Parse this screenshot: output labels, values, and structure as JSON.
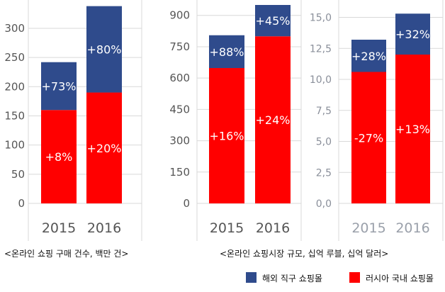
{
  "colors": {
    "overseas": "#2f4b8c",
    "domestic": "#ff0000",
    "grid": "#d9d9d9"
  },
  "chart_data": [
    {
      "type": "bar",
      "stacked": true,
      "categories": [
        "2015",
        "2016"
      ],
      "ylim": [
        0,
        340
      ],
      "yticks": [
        "0",
        "50",
        "100",
        "150",
        "200",
        "250",
        "300"
      ],
      "ytick_values": [
        0,
        50,
        100,
        150,
        200,
        250,
        300
      ],
      "series": [
        {
          "name": "러시아 국내 쇼핑몰",
          "values": [
            160,
            190
          ],
          "labels": [
            "+8%",
            "+20%"
          ]
        },
        {
          "name": "해외 직구 쇼핑몰",
          "values": [
            82,
            148
          ],
          "labels": [
            "+73%",
            "+80%"
          ]
        }
      ],
      "caption": "<온라인 쇼핑 구매 건수, 백만 건>"
    },
    {
      "type": "bar",
      "stacked": true,
      "categories": [
        "2015",
        "2016"
      ],
      "ylim": [
        0,
        950
      ],
      "yticks": [
        "0",
        "150",
        "300",
        "450",
        "600",
        "750",
        "900"
      ],
      "ytick_values": [
        0,
        150,
        300,
        450,
        600,
        750,
        900
      ],
      "series": [
        {
          "name": "러시아 국내 쇼핑몰",
          "values": [
            648,
            800
          ],
          "labels": [
            "+16%",
            "+24%"
          ]
        },
        {
          "name": "해외 직구 쇼핑몰",
          "values": [
            157,
            150
          ],
          "labels": [
            "+88%",
            "+45%"
          ]
        }
      ],
      "caption": "<온라인 쇼핑시장 규모, 십억 루블, 십억 달러>"
    },
    {
      "type": "bar",
      "stacked": true,
      "categories": [
        "2015",
        "2016"
      ],
      "ylim": [
        0,
        16
      ],
      "yticks": [
        "0,0",
        "2,5",
        "5,0",
        "7,5",
        "10,0",
        "12,5",
        "15,0"
      ],
      "ytick_values": [
        0,
        2.5,
        5,
        7.5,
        10,
        12.5,
        15
      ],
      "series": [
        {
          "name": "러시아 국내 쇼핑몰",
          "values": [
            10.6,
            12.0
          ],
          "labels": [
            "-27%",
            "+13%"
          ]
        },
        {
          "name": "해외 직구 쇼핑몰",
          "values": [
            2.6,
            3.3
          ],
          "labels": [
            "+28%",
            "+32%"
          ]
        }
      ]
    }
  ],
  "legend": [
    {
      "label": "해외 직구 쇼핑몰",
      "color": "#2f4b8c"
    },
    {
      "label": "러시아 국내 쇼핑몰",
      "color": "#ff0000"
    }
  ]
}
